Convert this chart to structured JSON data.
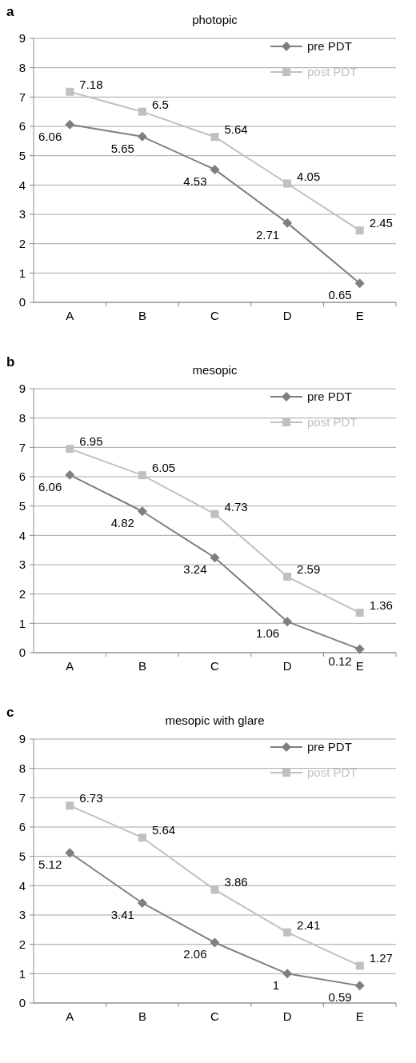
{
  "chart_data": [
    {
      "type": "line",
      "title": "photopic",
      "annotations": [
        "a"
      ],
      "categories": [
        "A",
        "B",
        "C",
        "D",
        "E"
      ],
      "series": [
        {
          "name": "pre PDT",
          "color": "#7f7f7f",
          "marker": "diamond",
          "values": [
            6.06,
            5.65,
            4.53,
            2.71,
            0.65
          ]
        },
        {
          "name": "post PDT",
          "color": "#c0c0c0",
          "marker": "square",
          "values": [
            7.18,
            6.5,
            5.64,
            4.05,
            2.45
          ]
        }
      ],
      "ylim": [
        0,
        9
      ],
      "yticks": [
        0,
        1,
        2,
        3,
        4,
        5,
        6,
        7,
        8,
        9
      ],
      "grid": "y",
      "legend": "top right",
      "data_labels": true
    },
    {
      "type": "line",
      "title": "mesopic",
      "annotations": [
        "b"
      ],
      "categories": [
        "A",
        "B",
        "C",
        "D",
        "E"
      ],
      "series": [
        {
          "name": "pre PDT",
          "color": "#7f7f7f",
          "marker": "diamond",
          "values": [
            6.06,
            4.82,
            3.24,
            1.06,
            0.12
          ]
        },
        {
          "name": "post PDT",
          "color": "#c0c0c0",
          "marker": "square",
          "values": [
            6.95,
            6.05,
            4.73,
            2.59,
            1.36
          ]
        }
      ],
      "ylim": [
        0,
        9
      ],
      "yticks": [
        0,
        1,
        2,
        3,
        4,
        5,
        6,
        7,
        8,
        9
      ],
      "grid": "y",
      "legend": "top right",
      "data_labels": true
    },
    {
      "type": "line",
      "title": "mesopic with glare",
      "annotations": [
        "c"
      ],
      "categories": [
        "A",
        "B",
        "C",
        "D",
        "E"
      ],
      "series": [
        {
          "name": "pre PDT",
          "color": "#7f7f7f",
          "marker": "diamond",
          "values": [
            5.12,
            3.41,
            2.06,
            1,
            0.59
          ]
        },
        {
          "name": "post PDT",
          "color": "#c0c0c0",
          "marker": "square",
          "values": [
            6.73,
            5.64,
            3.86,
            2.41,
            1.27
          ]
        }
      ],
      "ylim": [
        0,
        9
      ],
      "yticks": [
        0,
        1,
        2,
        3,
        4,
        5,
        6,
        7,
        8,
        9
      ],
      "grid": "y",
      "legend": "top right",
      "data_labels": true
    }
  ]
}
